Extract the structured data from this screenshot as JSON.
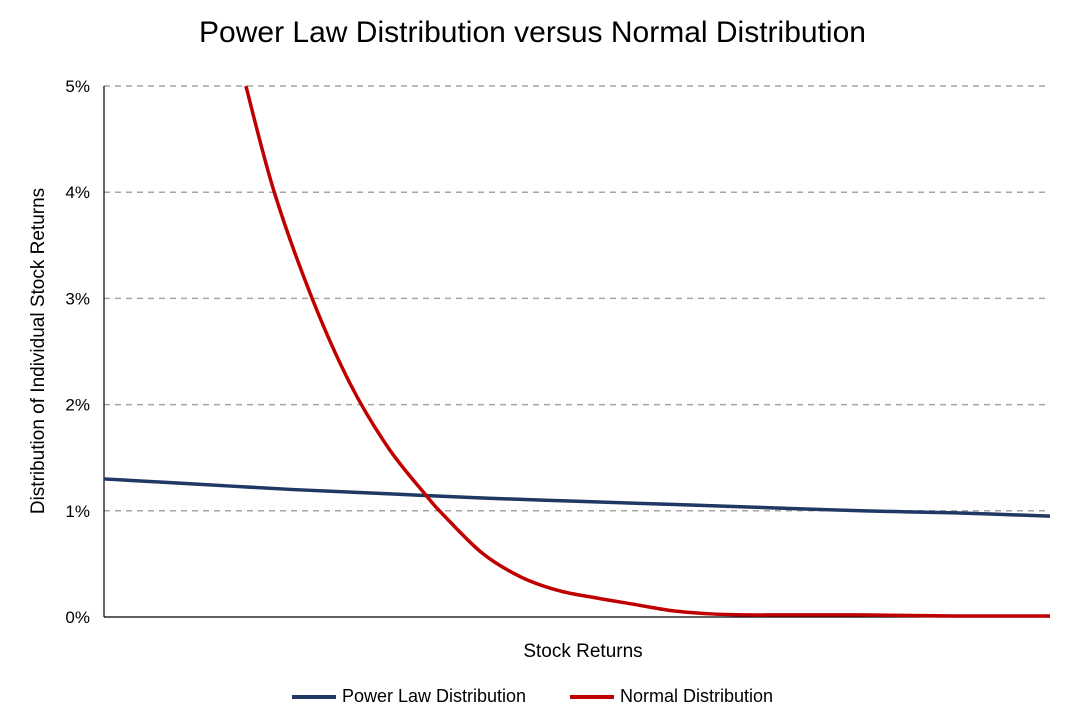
{
  "chart_data": {
    "type": "line",
    "title": "Power Law Distribution versus Normal Distribution",
    "xlabel": "Stock Returns",
    "ylabel": "Distribution of Individual Stock Returns",
    "y_ticks": [
      "0%",
      "1%",
      "2%",
      "3%",
      "4%",
      "5%"
    ],
    "ylim": [
      0,
      5
    ],
    "xlim": [
      0,
      100
    ],
    "grid": "horizontal dashed",
    "legend_position": "bottom",
    "series": [
      {
        "name": "Power Law Distribution",
        "color": "#1f3864",
        "x": [
          0,
          10,
          20,
          30,
          40,
          50,
          60,
          70,
          80,
          90,
          100
        ],
        "values": [
          1.3,
          1.25,
          1.2,
          1.16,
          1.12,
          1.09,
          1.06,
          1.03,
          1.0,
          0.98,
          0.95
        ]
      },
      {
        "name": "Normal Distribution",
        "color": "#c00000",
        "x": [
          15,
          18,
          22,
          26,
          30,
          34,
          36,
          40,
          44,
          48,
          52,
          56,
          60,
          64,
          68,
          72,
          80,
          90,
          100
        ],
        "values": [
          5.0,
          4.0,
          3.0,
          2.2,
          1.6,
          1.15,
          0.95,
          0.6,
          0.38,
          0.25,
          0.18,
          0.12,
          0.06,
          0.03,
          0.02,
          0.02,
          0.02,
          0.01,
          0.01
        ]
      }
    ]
  }
}
